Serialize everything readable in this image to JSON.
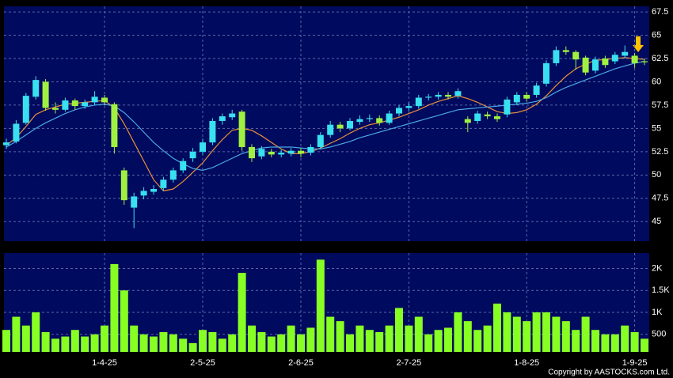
{
  "chart_data": [
    {
      "type": "candlestick",
      "up_color": "#38e0f0",
      "down_color": "#a0f040",
      "open": [
        53.2,
        53.6,
        55.6,
        58.4,
        60,
        57.2,
        57,
        58,
        57.4,
        57.8,
        58.3,
        57.6,
        50.5,
        46.5,
        47.8,
        48.2,
        48.6,
        49.5,
        50.5,
        51.8,
        52.5,
        53.5,
        55.8,
        56.2,
        56.8,
        53,
        52,
        52.5,
        52.2,
        52.3,
        52.6,
        52.4,
        53,
        54.3,
        55.4,
        55,
        55.7,
        56,
        56.1,
        55.6,
        56.6,
        57.2,
        57.4,
        58.3,
        58.4,
        58.6,
        58.5,
        56,
        55.8,
        56.5,
        56.3,
        56.5,
        57.8,
        58.6,
        58.6,
        59.8,
        62,
        63.4,
        63.2,
        62.6,
        61.2,
        62.5,
        62.2,
        62.8,
        62.8,
        62.2
      ],
      "high": [
        53.9,
        55.9,
        58.8,
        60.6,
        60.3,
        57.8,
        58.3,
        58.2,
        58.1,
        59,
        58.6,
        57.8,
        50.8,
        48.1,
        48.7,
        48.9,
        49.8,
        50.8,
        51.8,
        52.9,
        53.9,
        56.1,
        56.6,
        57,
        57,
        53.3,
        53.1,
        52.8,
        52.7,
        52.9,
        52.9,
        53.3,
        54.6,
        55.8,
        55.7,
        56.1,
        56.4,
        56.5,
        56.4,
        56.9,
        57.5,
        57.8,
        58.6,
        58.7,
        58.9,
        58.9,
        59.3,
        56.3,
        56.9,
        56.8,
        56.6,
        58.4,
        58.9,
        58.9,
        59.9,
        62.3,
        63.8,
        63.8,
        63.4,
        62.8,
        62.7,
        62.8,
        63.2,
        63.9,
        63.1,
        62.5
      ],
      "low": [
        52.8,
        53.4,
        55.4,
        58.1,
        56.9,
        56.6,
        56.8,
        57,
        57.1,
        57.5,
        57.5,
        52.3,
        46.8,
        44.3,
        47.4,
        47.9,
        48.3,
        49.2,
        50.2,
        51.4,
        52.2,
        53.2,
        55.4,
        55.9,
        52.6,
        51.4,
        51.7,
        51.9,
        51.9,
        52,
        51.9,
        52.1,
        52.8,
        54,
        54.6,
        54.8,
        55.4,
        55.7,
        55.3,
        55.4,
        56.3,
        56.9,
        57.1,
        58,
        58.1,
        58.1,
        58.2,
        54.6,
        55.5,
        56,
        55.7,
        56.2,
        57.5,
        57.9,
        58.3,
        59.5,
        61.7,
        62.9,
        61.3,
        60.7,
        60.9,
        61.5,
        61.9,
        62.5,
        61.5,
        61.8
      ],
      "close": [
        53.5,
        55.5,
        58.5,
        60.2,
        57.2,
        57,
        58,
        57.4,
        57.8,
        58.4,
        57.8,
        53,
        47.3,
        47.7,
        48.3,
        48.5,
        49.5,
        50.5,
        51.5,
        52.5,
        53.5,
        55.8,
        56.3,
        56.6,
        53,
        51.8,
        52.8,
        52.2,
        52.4,
        52.6,
        52.3,
        53,
        54.3,
        55.4,
        55,
        55.8,
        56,
        56.1,
        55.6,
        56.6,
        57.2,
        57.4,
        58.3,
        58.4,
        58.6,
        58.4,
        59,
        55.6,
        56.6,
        56.3,
        56,
        58.1,
        58.6,
        58.2,
        59.6,
        62,
        63.4,
        63.2,
        62.4,
        61,
        62.4,
        61.8,
        62.9,
        63.2,
        62,
        62.1
      ],
      "series": [
        {
          "color": "#e8903a",
          "values": [
            53.2,
            54,
            55.2,
            56.5,
            57,
            57.3,
            57.6,
            57.7,
            57.8,
            57.9,
            58,
            57.2,
            55.5,
            53.5,
            51.5,
            49.5,
            48.3,
            48.5,
            49.3,
            50.3,
            51.3,
            52.6,
            53.8,
            54.8,
            55,
            54.8,
            54.2,
            53.5,
            52.8,
            52.3,
            52.3,
            52.5,
            52.9,
            53.4,
            53.9,
            54.5,
            55,
            55.4,
            55.6,
            55.9,
            56.2,
            56.6,
            57,
            57.5,
            57.9,
            58.2,
            58.5,
            58.2,
            57.8,
            57.3,
            56.8,
            56.6,
            56.7,
            57,
            57.6,
            58.5,
            59.6,
            60.6,
            61.4,
            61.9,
            62.3,
            62.4,
            62.5,
            62.6,
            62.5,
            62.4
          ]
        },
        {
          "color": "#4aa8e8",
          "values": [
            53,
            53.6,
            54.3,
            55,
            55.6,
            56.1,
            56.6,
            57,
            57.3,
            57.5,
            57.6,
            57.4,
            56.7,
            55.7,
            54.6,
            53.5,
            52.6,
            51.8,
            51.2,
            50.7,
            50.5,
            50.8,
            51.3,
            51.8,
            52.3,
            52.6,
            52.9,
            53,
            53,
            53,
            52.9,
            52.8,
            52.8,
            53,
            53.3,
            53.6,
            54,
            54.3,
            54.6,
            54.9,
            55.2,
            55.5,
            55.8,
            56.1,
            56.4,
            56.7,
            57,
            57.1,
            57.2,
            57.3,
            57.4,
            57.5,
            57.6,
            57.7,
            57.9,
            58.3,
            58.9,
            59.4,
            59.8,
            60.2,
            60.6,
            61,
            61.4,
            61.7,
            62,
            62.2
          ]
        }
      ],
      "ylim": [
        42.9,
        68.1
      ],
      "yticks": [
        45,
        47.5,
        50,
        52.5,
        55,
        57.5,
        60,
        62.5,
        65,
        67.5
      ],
      "grid": true
    },
    {
      "type": "bar",
      "color": "#88ff22",
      "categories": [
        null,
        null,
        null,
        null,
        null,
        null,
        null,
        null,
        null,
        null,
        "1-4-25",
        null,
        null,
        null,
        null,
        null,
        null,
        null,
        null,
        null,
        "2-5-25",
        null,
        null,
        null,
        null,
        null,
        null,
        null,
        null,
        null,
        "2-6-25",
        null,
        null,
        null,
        null,
        null,
        null,
        null,
        null,
        null,
        null,
        "2-7-25",
        null,
        null,
        null,
        null,
        null,
        null,
        null,
        null,
        null,
        null,
        null,
        "1-8-25",
        null,
        null,
        null,
        null,
        null,
        null,
        null,
        null,
        null,
        null,
        "1-9-25",
        null
      ],
      "values": [
        600,
        900,
        700,
        1000,
        550,
        400,
        450,
        600,
        450,
        500,
        700,
        2100,
        1500,
        700,
        500,
        450,
        550,
        500,
        400,
        300,
        600,
        550,
        400,
        500,
        1900,
        700,
        550,
        450,
        500,
        700,
        500,
        650,
        2200,
        900,
        800,
        500,
        700,
        600,
        550,
        700,
        1100,
        700,
        900,
        500,
        600,
        650,
        1000,
        800,
        600,
        700,
        1200,
        1000,
        900,
        800,
        1000,
        1000,
        900,
        800,
        600,
        900,
        600,
        500,
        500,
        700,
        550,
        400
      ],
      "ylim": [
        100,
        2350
      ],
      "yticks": [
        500,
        {
          "value": 1000,
          "label": "1K"
        },
        {
          "value": 1500,
          "label": "1.5K"
        },
        {
          "value": 2000,
          "label": "2K"
        }
      ],
      "grid": true,
      "annotation": "Copyright by AASTOCKS.com Ltd."
    }
  ]
}
